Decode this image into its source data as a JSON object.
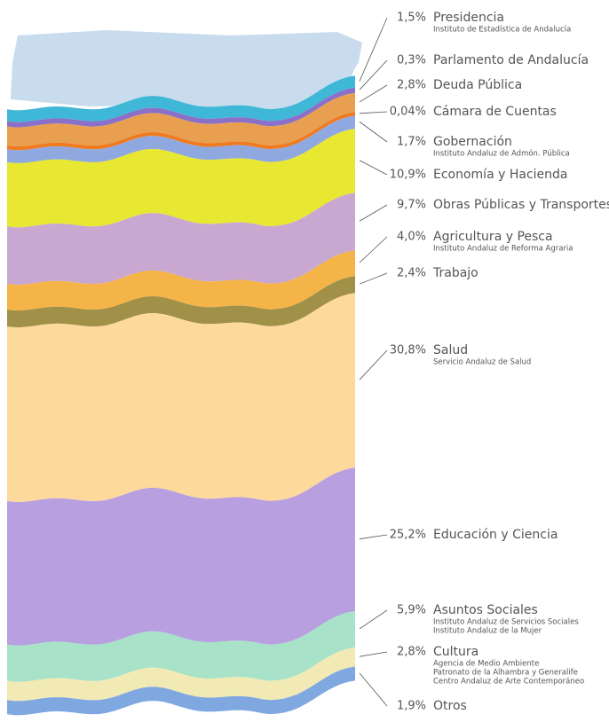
{
  "chart_data": {
    "type": "stacked-column",
    "categories": [
      "Presidencia",
      "Parlamento de Andalucía",
      "Deuda Pública",
      "Cámara de Cuentas",
      "Gobernación",
      "Economía y Hacienda",
      "Obras Públicas y Transportes",
      "Agricultura y Pesca",
      "Trabajo",
      "Salud",
      "Educación y Ciencia",
      "Asuntos Sociales",
      "Cultura",
      "Otros"
    ],
    "values": [
      1.5,
      0.3,
      2.8,
      0.04,
      1.7,
      10.9,
      9.7,
      4.0,
      2.4,
      30.8,
      25.2,
      5.9,
      2.8,
      1.9
    ],
    "value_labels": [
      "1,5%",
      "0,3%",
      "2,8%",
      "0,04%",
      "1,7%",
      "10,9%",
      "9,7%",
      "4,0%",
      "2,4%",
      "30,8%",
      "25,2%",
      "5,9%",
      "2,8%",
      "1,9%"
    ],
    "notes": [
      [
        "Instituto de Estadística de Andalucía"
      ],
      [],
      [],
      [],
      [
        "Instituto Andaluz de Admón. Pública"
      ],
      [],
      [],
      [
        "Instituto Andaluz de Reforma Agraria"
      ],
      [],
      [
        "Servicio Andaluz de Salud"
      ],
      [],
      [
        "Instituto Andaluz de Servicios Sociales",
        "Instituto Andaluz de la Mujer"
      ],
      [
        "Agencia de Medio Ambiente",
        "Patronato de la Alhambra y Generalife",
        "Centro Andaluz de Arte Contemporáneo"
      ],
      []
    ],
    "colors": [
      "#3fb7d6",
      "#8a70c8",
      "#e8a050",
      "#f07a20",
      "#8fa8e0",
      "#e8e832",
      "#c8a8d0",
      "#f4b448",
      "#a09048",
      "#fdd99c",
      "#b8a0e0",
      "#a8e2c8",
      "#f2eab4",
      "#80a8e0"
    ]
  }
}
